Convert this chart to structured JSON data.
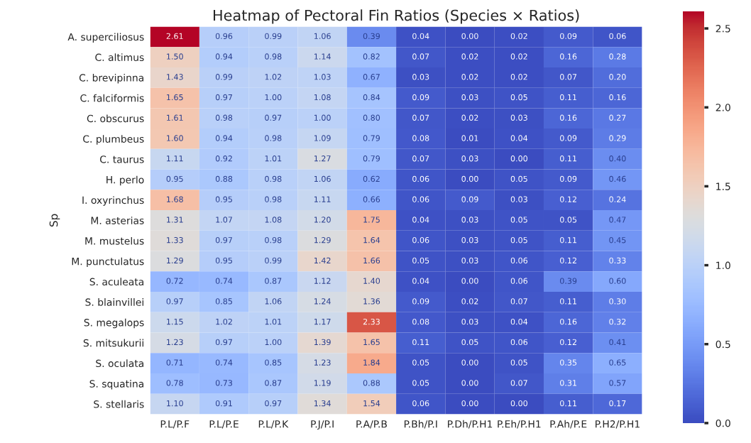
{
  "chart_data": {
    "type": "heatmap",
    "title": "Heatmap of Pectoral Fin Ratios (Species × Ratios)",
    "ylabel": "Sp",
    "categories": [
      "P.L/P.F",
      "P.L/P.E",
      "P.L/P.K",
      "P.J/P.I",
      "P.A/P.B",
      "P.Bh/P.I",
      "P.Dh/P.H1",
      "P.Eh/P.H1",
      "P.Ah/P.E",
      "P.H2/P.H1"
    ],
    "y_categories": [
      "A. superciliosus",
      "C. altimus",
      "C. brevipinna",
      "C. falciformis",
      "C. obscurus",
      "C. plumbeus",
      "C. taurus",
      "H. perlo",
      "I. oxyrinchus",
      "M. asterias",
      "M. mustelus",
      "M. punctulatus",
      "S. aculeata",
      "S. blainvillei",
      "S. megalops",
      "S. mitsukurii",
      "S. oculata",
      "S. squatina",
      "S. stellaris"
    ],
    "cells": [
      [
        2.61,
        0.96,
        0.99,
        1.06,
        0.39,
        0.04,
        0.0,
        0.02,
        0.09,
        0.06
      ],
      [
        1.5,
        0.94,
        0.98,
        1.14,
        0.82,
        0.07,
        0.02,
        0.02,
        0.16,
        0.28
      ],
      [
        1.43,
        0.99,
        1.02,
        1.03,
        0.67,
        0.03,
        0.02,
        0.02,
        0.07,
        0.2
      ],
      [
        1.65,
        0.97,
        1.0,
        1.08,
        0.84,
        0.09,
        0.03,
        0.05,
        0.11,
        0.16
      ],
      [
        1.61,
        0.98,
        0.97,
        1.0,
        0.8,
        0.07,
        0.02,
        0.03,
        0.16,
        0.27
      ],
      [
        1.6,
        0.94,
        0.98,
        1.09,
        0.79,
        0.08,
        0.01,
        0.04,
        0.09,
        0.29
      ],
      [
        1.11,
        0.92,
        1.01,
        1.27,
        0.79,
        0.07,
        0.03,
        0.0,
        0.11,
        0.4
      ],
      [
        0.95,
        0.88,
        0.98,
        1.06,
        0.62,
        0.06,
        0.0,
        0.05,
        0.09,
        0.46
      ],
      [
        1.68,
        0.95,
        0.98,
        1.11,
        0.66,
        0.06,
        0.09,
        0.03,
        0.12,
        0.24
      ],
      [
        1.31,
        1.07,
        1.08,
        1.2,
        1.75,
        0.04,
        0.03,
        0.05,
        0.05,
        0.47
      ],
      [
        1.33,
        0.97,
        0.98,
        1.29,
        1.64,
        0.06,
        0.03,
        0.05,
        0.11,
        0.45
      ],
      [
        1.29,
        0.95,
        0.99,
        1.42,
        1.66,
        0.05,
        0.03,
        0.06,
        0.12,
        0.33
      ],
      [
        0.72,
        0.74,
        0.87,
        1.12,
        1.4,
        0.04,
        0.0,
        0.06,
        0.39,
        0.6
      ],
      [
        0.97,
        0.85,
        1.06,
        1.24,
        1.36,
        0.09,
        0.02,
        0.07,
        0.11,
        0.3
      ],
      [
        1.15,
        1.02,
        1.01,
        1.17,
        2.33,
        0.08,
        0.03,
        0.04,
        0.16,
        0.32
      ],
      [
        1.23,
        0.97,
        1.0,
        1.39,
        1.65,
        0.11,
        0.05,
        0.06,
        0.12,
        0.41
      ],
      [
        0.71,
        0.74,
        0.85,
        1.23,
        1.84,
        0.05,
        0.0,
        0.05,
        0.35,
        0.65
      ],
      [
        0.78,
        0.73,
        0.87,
        1.19,
        0.88,
        0.05,
        0.0,
        0.07,
        0.31,
        0.57
      ],
      [
        1.1,
        0.91,
        0.97,
        1.34,
        1.54,
        0.06,
        0.0,
        0.0,
        0.11,
        0.17
      ]
    ],
    "cell_labels": [
      [
        "2.61",
        "0.96",
        "0.99",
        "1.06",
        "0.39",
        "0.04",
        "0.00",
        "0.02",
        "0.09",
        "0.06"
      ],
      [
        "1.50",
        "0.94",
        "0.98",
        "1.14",
        "0.82",
        "0.07",
        "0.02",
        "0.02",
        "0.16",
        "0.28"
      ],
      [
        "1.43",
        "0.99",
        "1.02",
        "1.03",
        "0.67",
        "0.03",
        "0.02",
        "0.02",
        "0.07",
        "0.20"
      ],
      [
        "1.65",
        "0.97",
        "1.00",
        "1.08",
        "0.84",
        "0.09",
        "0.03",
        "0.05",
        "0.11",
        "0.16"
      ],
      [
        "1.61",
        "0.98",
        "0.97",
        "1.00",
        "0.80",
        "0.07",
        "0.02",
        "0.03",
        "0.16",
        "0.27"
      ],
      [
        "1.60",
        "0.94",
        "0.98",
        "1.09",
        "0.79",
        "0.08",
        "0.01",
        "0.04",
        "0.09",
        "0.29"
      ],
      [
        "1.11",
        "0.92",
        "1.01",
        "1.27",
        "0.79",
        "0.07",
        "0.03",
        "0.00",
        "0.11",
        "0.40"
      ],
      [
        "0.95",
        "0.88",
        "0.98",
        "1.06",
        "0.62",
        "0.06",
        "0.00",
        "0.05",
        "0.09",
        "0.46"
      ],
      [
        "1.68",
        "0.95",
        "0.98",
        "1.11",
        "0.66",
        "0.06",
        "0.09",
        "0.03",
        "0.12",
        "0.24"
      ],
      [
        "1.31",
        "1.07",
        "1.08",
        "1.20",
        "1.75",
        "0.04",
        "0.03",
        "0.05",
        "0.05",
        "0.47"
      ],
      [
        "1.33",
        "0.97",
        "0.98",
        "1.29",
        "1.64",
        "0.06",
        "0.03",
        "0.05",
        "0.11",
        "0.45"
      ],
      [
        "1.29",
        "0.95",
        "0.99",
        "1.42",
        "1.66",
        "0.05",
        "0.03",
        "0.06",
        "0.12",
        "0.33"
      ],
      [
        "0.72",
        "0.74",
        "0.87",
        "1.12",
        "1.40",
        "0.04",
        "0.00",
        "0.06",
        "0.39",
        "0.60"
      ],
      [
        "0.97",
        "0.85",
        "1.06",
        "1.24",
        "1.36",
        "0.09",
        "0.02",
        "0.07",
        "0.11",
        "0.30"
      ],
      [
        "1.15",
        "1.02",
        "1.01",
        "1.17",
        "2.33",
        "0.08",
        "0.03",
        "0.04",
        "0.16",
        "0.32"
      ],
      [
        "1.23",
        "0.97",
        "1.00",
        "1.39",
        "1.65",
        "0.11",
        "0.05",
        "0.06",
        "0.12",
        "0.41"
      ],
      [
        "0.71",
        "0.74",
        "0.85",
        "1.23",
        "1.84",
        "0.05",
        "0.00",
        "0.05",
        "0.35",
        "0.65"
      ],
      [
        "0.78",
        "0.73",
        "0.87",
        "1.19",
        "0.88",
        "0.05",
        "0.00",
        "0.07",
        "0.31",
        "0.57"
      ],
      [
        "1.10",
        "0.91",
        "0.97",
        "1.34",
        "1.54",
        "0.06",
        "0.00",
        "0.00",
        "0.11",
        "0.17"
      ]
    ],
    "clim": [
      0,
      2.61
    ],
    "cticks": [
      {
        "value": 0,
        "label": "0.0"
      },
      {
        "value": 0.5,
        "label": "0.5"
      },
      {
        "value": 1,
        "label": "1.0"
      },
      {
        "value": 1.5,
        "label": "1.5"
      },
      {
        "value": 2,
        "label": "2.0"
      },
      {
        "value": 2.5,
        "label": "2.5"
      }
    ],
    "data_labels": true
  }
}
